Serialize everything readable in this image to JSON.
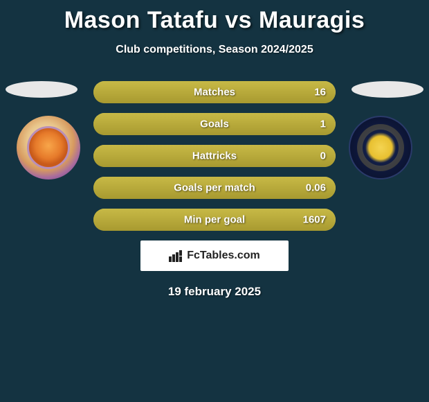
{
  "title": "Mason Tatafu vs Mauragis",
  "subtitle": "Club competitions, Season 2024/2025",
  "date": "19 february 2025",
  "brand": "FcTables.com",
  "colors": {
    "background": "#143341",
    "bar_fill": "#b8ab3e",
    "bar_gradient_top": "#c7b946",
    "bar_gradient_bottom": "#a89a30",
    "text": "#ffffff"
  },
  "stats": [
    {
      "label": "Matches",
      "value": "16",
      "fill_pct": 100,
      "right_pct": 0
    },
    {
      "label": "Goals",
      "value": "1",
      "fill_pct": 100,
      "right_pct": 0
    },
    {
      "label": "Hattricks",
      "value": "0",
      "fill_pct": 100,
      "right_pct": 0
    },
    {
      "label": "Goals per match",
      "value": "0.06",
      "fill_pct": 100,
      "right_pct": 0
    },
    {
      "label": "Min per goal",
      "value": "1607",
      "fill_pct": 100,
      "right_pct": 0
    }
  ]
}
